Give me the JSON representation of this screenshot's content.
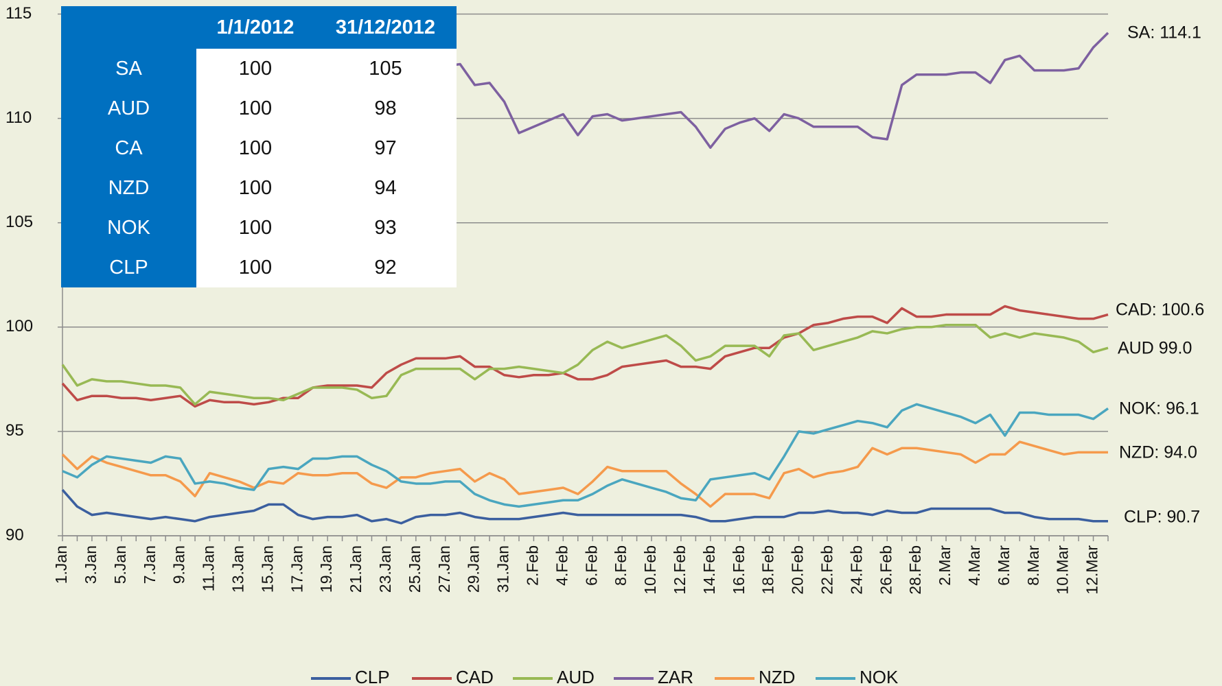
{
  "chart_data": {
    "type": "line",
    "categories": [
      "1.Jan",
      null,
      "3.Jan",
      null,
      "5.Jan",
      null,
      "7.Jan",
      null,
      "9.Jan",
      null,
      "11.Jan",
      null,
      "13.Jan",
      null,
      "15.Jan",
      null,
      "17.Jan",
      null,
      "19.Jan",
      null,
      "21.Jan",
      null,
      "23.Jan",
      null,
      "25.Jan",
      null,
      "27.Jan",
      null,
      "29.Jan",
      null,
      "31.Jan",
      null,
      "2.Feb",
      null,
      "4.Feb",
      null,
      "6.Feb",
      null,
      "8.Feb",
      null,
      "10.Feb",
      null,
      "12.Feb",
      null,
      "14.Feb",
      null,
      "16.Feb",
      null,
      "18.Feb",
      null,
      "20.Feb",
      null,
      "22.Feb",
      null,
      "24.Feb",
      null,
      "26.Feb",
      null,
      "28.Feb",
      null,
      "2.Mar",
      null,
      "4.Mar",
      null,
      "6.Mar",
      null,
      "8.Mar",
      null,
      "10.Mar",
      null,
      "12.Mar",
      null
    ],
    "series": [
      {
        "name": "CLP",
        "color": "#3b5f9f",
        "values": [
          92.2,
          91.4,
          91.0,
          91.1,
          91.0,
          90.9,
          90.8,
          90.9,
          90.8,
          90.7,
          90.9,
          91.0,
          91.1,
          91.2,
          91.5,
          91.5,
          91.0,
          90.8,
          90.9,
          90.9,
          91.0,
          90.7,
          90.8,
          90.6,
          90.9,
          91.0,
          91.0,
          91.1,
          90.9,
          90.8,
          90.8,
          90.8,
          90.9,
          91.0,
          91.1,
          91.0,
          91.0,
          91.0,
          91.0,
          91.0,
          91.0,
          91.0,
          91.0,
          90.9,
          90.7,
          90.7,
          90.8,
          90.9,
          90.9,
          90.9,
          91.1,
          91.1,
          91.2,
          91.1,
          91.1,
          91.0,
          91.2,
          91.1,
          91.1,
          91.3,
          91.3,
          91.3,
          91.3,
          91.3,
          91.1,
          91.1,
          90.9,
          90.8,
          90.8,
          90.8,
          90.7,
          90.7
        ]
      },
      {
        "name": "CAD",
        "color": "#be4b48",
        "values": [
          97.3,
          96.5,
          96.7,
          96.7,
          96.6,
          96.6,
          96.5,
          96.6,
          96.7,
          96.2,
          96.5,
          96.4,
          96.4,
          96.3,
          96.4,
          96.6,
          96.6,
          97.1,
          97.2,
          97.2,
          97.2,
          97.1,
          97.8,
          98.2,
          98.5,
          98.5,
          98.5,
          98.6,
          98.1,
          98.1,
          97.7,
          97.6,
          97.7,
          97.7,
          97.8,
          97.5,
          97.5,
          97.7,
          98.1,
          98.2,
          98.3,
          98.4,
          98.1,
          98.1,
          98.0,
          98.6,
          98.8,
          99.0,
          99.0,
          99.5,
          99.7,
          100.1,
          100.2,
          100.4,
          100.5,
          100.5,
          100.2,
          100.9,
          100.5,
          100.5,
          100.6,
          100.6,
          100.6,
          100.6,
          101.0,
          100.8,
          100.7,
          100.6,
          100.5,
          100.4,
          100.4,
          100.6
        ]
      },
      {
        "name": "AUD",
        "color": "#98b954",
        "values": [
          98.2,
          97.2,
          97.5,
          97.4,
          97.4,
          97.3,
          97.2,
          97.2,
          97.1,
          96.3,
          96.9,
          96.8,
          96.7,
          96.6,
          96.6,
          96.5,
          96.8,
          97.1,
          97.1,
          97.1,
          97.0,
          96.6,
          96.7,
          97.7,
          98.0,
          98.0,
          98.0,
          98.0,
          97.5,
          98.0,
          98.0,
          98.1,
          98.0,
          97.9,
          97.8,
          98.2,
          98.9,
          99.3,
          99.0,
          99.2,
          99.4,
          99.6,
          99.1,
          98.4,
          98.6,
          99.1,
          99.1,
          99.1,
          98.6,
          99.6,
          99.7,
          98.9,
          99.1,
          99.3,
          99.5,
          99.8,
          99.7,
          99.9,
          100.0,
          100.0,
          100.1,
          100.1,
          100.1,
          99.5,
          99.7,
          99.5,
          99.7,
          99.6,
          99.5,
          99.3,
          98.8,
          99.0
        ]
      },
      {
        "name": "ZAR",
        "color": "#7d60a0",
        "values": [
          107.0,
          107.5,
          108.0,
          108.3,
          108.6,
          108.9,
          109.2,
          109.5,
          109.8,
          110.0,
          110.3,
          110.5,
          110.7,
          110.9,
          111.1,
          111.3,
          111.4,
          111.6,
          111.7,
          111.8,
          111.9,
          112.0,
          112.1,
          112.2,
          112.3,
          112.4,
          112.5,
          112.6,
          111.6,
          111.7,
          110.8,
          109.3,
          109.6,
          109.9,
          110.2,
          109.2,
          110.1,
          110.2,
          109.9,
          110.0,
          110.1,
          110.2,
          110.3,
          109.6,
          108.6,
          109.5,
          109.8,
          110.0,
          109.4,
          110.2,
          110.0,
          109.6,
          109.6,
          109.6,
          109.6,
          109.1,
          109.0,
          111.6,
          112.1,
          112.1,
          112.1,
          112.2,
          112.2,
          111.7,
          112.8,
          113.0,
          112.3,
          112.3,
          112.3,
          112.4,
          113.4,
          114.1
        ]
      },
      {
        "name": "NZD",
        "color": "#f59a4c",
        "values": [
          93.9,
          93.2,
          93.8,
          93.5,
          93.3,
          93.1,
          92.9,
          92.9,
          92.6,
          91.9,
          93.0,
          92.8,
          92.6,
          92.3,
          92.6,
          92.5,
          93.0,
          92.9,
          92.9,
          93.0,
          93.0,
          92.5,
          92.3,
          92.8,
          92.8,
          93.0,
          93.1,
          93.2,
          92.6,
          93.0,
          92.7,
          92.0,
          92.1,
          92.2,
          92.3,
          92.0,
          92.6,
          93.3,
          93.1,
          93.1,
          93.1,
          93.1,
          92.5,
          92.0,
          91.4,
          92.0,
          92.0,
          92.0,
          91.8,
          93.0,
          93.2,
          92.8,
          93.0,
          93.1,
          93.3,
          94.2,
          93.9,
          94.2,
          94.2,
          94.1,
          94.0,
          93.9,
          93.5,
          93.9,
          93.9,
          94.5,
          94.3,
          94.1,
          93.9,
          94.0,
          94.0,
          94.0
        ]
      },
      {
        "name": "NOK",
        "color": "#4aa6bf",
        "values": [
          93.1,
          92.8,
          93.4,
          93.8,
          93.7,
          93.6,
          93.5,
          93.8,
          93.7,
          92.5,
          92.6,
          92.5,
          92.3,
          92.2,
          93.2,
          93.3,
          93.2,
          93.7,
          93.7,
          93.8,
          93.8,
          93.4,
          93.1,
          92.6,
          92.5,
          92.5,
          92.6,
          92.6,
          92.0,
          91.7,
          91.5,
          91.4,
          91.5,
          91.6,
          91.7,
          91.7,
          92.0,
          92.4,
          92.7,
          92.5,
          92.3,
          92.1,
          91.8,
          91.7,
          92.7,
          92.8,
          92.9,
          93.0,
          92.7,
          93.8,
          95.0,
          94.9,
          95.1,
          95.3,
          95.5,
          95.4,
          95.2,
          96.0,
          96.3,
          96.1,
          95.9,
          95.7,
          95.4,
          95.8,
          94.8,
          95.9,
          95.9,
          95.8,
          95.8,
          95.8,
          95.6,
          96.1
        ]
      }
    ],
    "ylim": [
      90,
      115
    ],
    "yticks": [
      90,
      95,
      100,
      105,
      110,
      115
    ],
    "grid": true,
    "legend": "bottom",
    "annotations": [
      "SA: 114.1",
      "CAD: 100.6",
      "AUD 99.0",
      "NOK: 96.1",
      "NZD: 94.0",
      "CLP: 90.7"
    ],
    "table": {
      "columns": [
        "1/1/2012",
        "31/12/2012"
      ],
      "rows": [
        {
          "label": "SA",
          "values": [
            100,
            105
          ]
        },
        {
          "label": "AUD",
          "values": [
            100,
            98
          ]
        },
        {
          "label": "CA",
          "values": [
            100,
            97
          ]
        },
        {
          "label": "NZD",
          "values": [
            100,
            94
          ]
        },
        {
          "label": "NOK",
          "values": [
            100,
            93
          ]
        },
        {
          "label": "CLP",
          "values": [
            100,
            92
          ]
        }
      ]
    }
  }
}
